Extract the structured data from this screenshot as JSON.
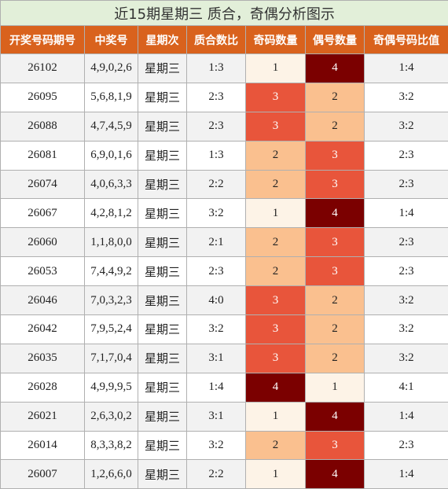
{
  "title": "近15期星期三 质合，奇偶分析图示",
  "table": {
    "columns": [
      "开奖号码期号",
      "中奖号",
      "星期次",
      "质合数比",
      "奇码数量",
      "偶号数量",
      "奇偶号码比值"
    ],
    "rows": [
      [
        "26102",
        "4,9,0,2,6",
        "星期三",
        "1:3",
        1,
        4,
        "1:4"
      ],
      [
        "26095",
        "5,6,8,1,9",
        "星期三",
        "2:3",
        3,
        2,
        "3:2"
      ],
      [
        "26088",
        "4,7,4,5,9",
        "星期三",
        "2:3",
        3,
        2,
        "3:2"
      ],
      [
        "26081",
        "6,9,0,1,6",
        "星期三",
        "1:3",
        2,
        3,
        "2:3"
      ],
      [
        "26074",
        "4,0,6,3,3",
        "星期三",
        "2:2",
        2,
        3,
        "2:3"
      ],
      [
        "26067",
        "4,2,8,1,2",
        "星期三",
        "3:2",
        1,
        4,
        "1:4"
      ],
      [
        "26060",
        "1,1,8,0,0",
        "星期三",
        "2:1",
        2,
        3,
        "2:3"
      ],
      [
        "26053",
        "7,4,4,9,2",
        "星期三",
        "2:3",
        2,
        3,
        "2:3"
      ],
      [
        "26046",
        "7,0,3,2,3",
        "星期三",
        "4:0",
        3,
        2,
        "3:2"
      ],
      [
        "26042",
        "7,9,5,2,4",
        "星期三",
        "3:2",
        3,
        2,
        "3:2"
      ],
      [
        "26035",
        "7,1,7,0,4",
        "星期三",
        "3:1",
        3,
        2,
        "3:2"
      ],
      [
        "26028",
        "4,9,9,9,5",
        "星期三",
        "1:4",
        4,
        1,
        "4:1"
      ],
      [
        "26021",
        "2,6,3,0,2",
        "星期三",
        "3:1",
        1,
        4,
        "1:4"
      ],
      [
        "26014",
        "8,3,3,8,2",
        "星期三",
        "3:2",
        2,
        3,
        "2:3"
      ],
      [
        "26007",
        "1,2,6,6,0",
        "星期三",
        "2:2",
        1,
        4,
        "1:4"
      ]
    ],
    "count_colors": {
      "1": "#fdf3e7",
      "2": "#fac08f",
      "3": "#e8553b",
      "4": "#7b0000"
    },
    "count_text_colors": {
      "1": "#222222",
      "2": "#222222",
      "3": "#ffffff",
      "4": "#ffffff"
    }
  }
}
